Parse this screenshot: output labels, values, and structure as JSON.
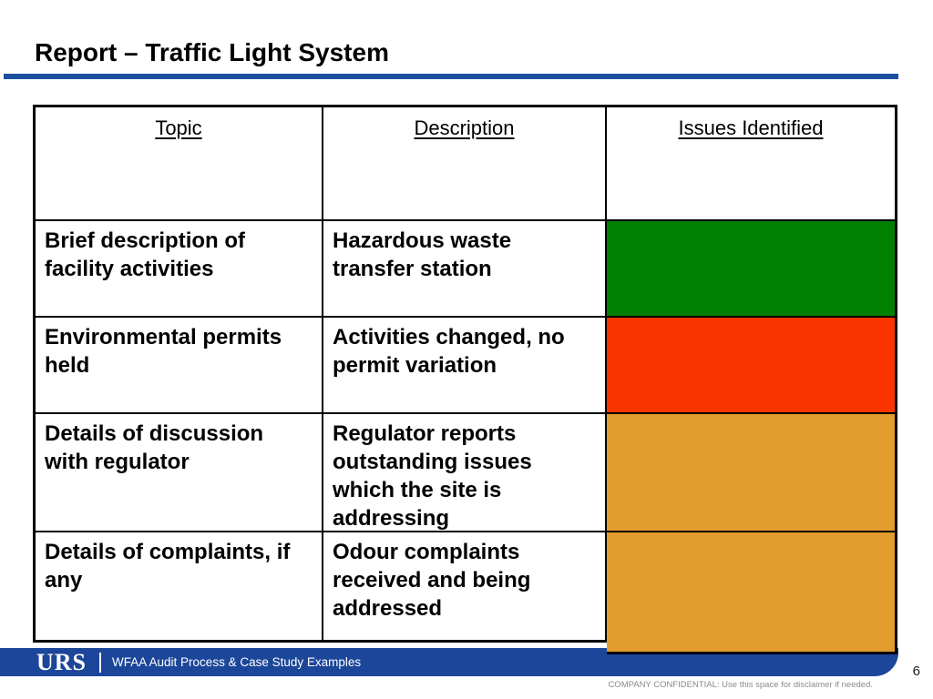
{
  "slide": {
    "title": "Report – Traffic Light System",
    "page_number": "6",
    "footer": {
      "logo": "URS",
      "label": "WFAA Audit Process & Case Study Examples",
      "disclaimer": "COMPANY CONFIDENTIAL: Use this space for disclaimer if needed."
    },
    "colors": {
      "accent_blue": "#1b4f9f",
      "footer_blue": "#1c4699",
      "status_green": "#008000",
      "status_red": "#fc3500",
      "status_amber": "#e29b2d"
    }
  },
  "table": {
    "headers": [
      "Topic",
      "Description",
      "Issues Identified"
    ],
    "rows": [
      {
        "topic": "Brief description of\nfacility activities",
        "description": "Hazardous waste\ntransfer station",
        "status": "green",
        "color": "#008000"
      },
      {
        "topic": "Environmental permits\nheld",
        "description": "Activities changed, no\npermit variation",
        "status": "red",
        "color": "#fc3500"
      },
      {
        "topic": "Details of discussion\nwith regulator",
        "description": "Regulator reports\noutstanding issues\nwhich the site is\naddressing",
        "status": "amber",
        "color": "#e29b2d"
      },
      {
        "topic": "Details of complaints, if\nany",
        "description": "Odour complaints\nreceived and being\naddressed",
        "status": "amber",
        "color": "#e29b2d"
      }
    ]
  }
}
